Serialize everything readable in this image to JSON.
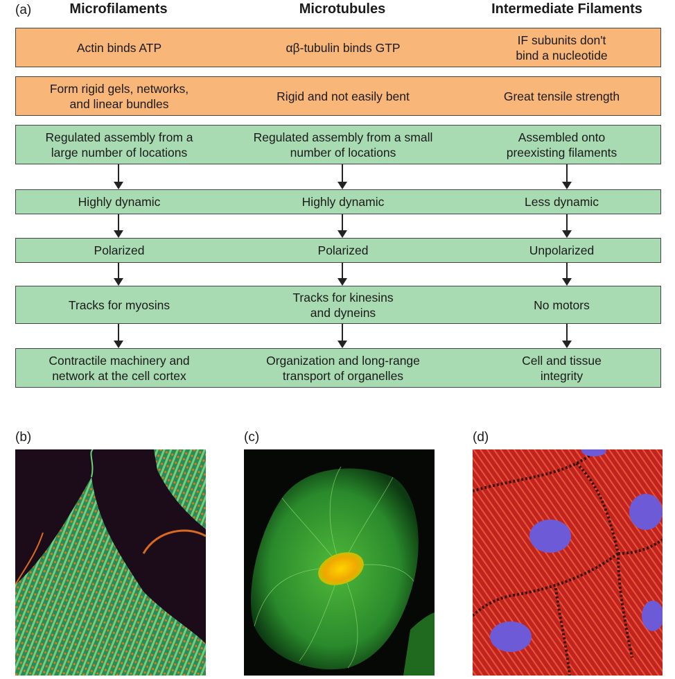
{
  "panel_a_label": "(a)",
  "headers": {
    "col1": "Microfilaments",
    "col2": "Microtubules",
    "col3": "Intermediate Filaments"
  },
  "rows": [
    {
      "col1": "Actin binds ATP",
      "col2": "αβ-tubulin binds GTP",
      "col3": "IF subunits don't\nbind a nucleotide"
    },
    {
      "col1": "Form rigid gels, networks,\nand linear bundles",
      "col2": "Rigid and not easily bent",
      "col3": "Great tensile strength"
    },
    {
      "col1": "Regulated assembly from a\nlarge number of locations",
      "col2": "Regulated assembly from a small\nnumber of locations",
      "col3": "Assembled onto\npreexisting filaments"
    },
    {
      "col1": "Highly dynamic",
      "col2": "Highly dynamic",
      "col3": "Less dynamic"
    },
    {
      "col1": "Polarized",
      "col2": "Polarized",
      "col3": "Unpolarized"
    },
    {
      "col1": "Tracks for myosins",
      "col2": "Tracks for kinesins\nand dyneins",
      "col3": "No motors"
    },
    {
      "col1": "Contractile machinery and\nnetwork at the cell cortex",
      "col2": "Organization and long-range\ntransport of organelles",
      "col3": "Cell and tissue\nintegrity"
    }
  ],
  "micrographs": {
    "b_label": "(b)",
    "c_label": "(c)",
    "d_label": "(d)"
  },
  "colors": {
    "orange_box": "#f9b679",
    "green_box": "#a9dbb3"
  }
}
